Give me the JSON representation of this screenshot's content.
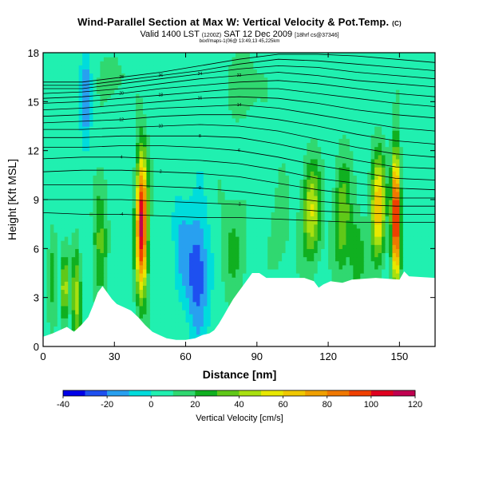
{
  "header": {
    "title": "Wind-Parallel Section at Max W: Vertical Velocity & Pot.Temp.",
    "title_unit": "(C)",
    "valid_prefix": "Valid 1400 LST",
    "valid_utc": "(1200Z)",
    "valid_date": "SAT 12 Dec 2009",
    "valid_run": "[18hrf cs@37346]",
    "meta": "boxf/maps-1(06@ 13:49,13 45,225km"
  },
  "chart_data": {
    "type": "heatmap",
    "title": "Wind-Parallel Section at Max W: Vertical Velocity & Pot.Temp.",
    "xlabel": "Distance [nm]",
    "ylabel": "Height [Kft MSL]",
    "xlim": [
      0,
      165
    ],
    "ylim": [
      0,
      18
    ],
    "xticks": [
      "0",
      "30",
      "60",
      "90",
      "120",
      "150"
    ],
    "xtick_values": [
      0,
      30,
      60,
      90,
      120,
      150
    ],
    "yticks": [
      "0",
      "3",
      "6",
      "9",
      "12",
      "15",
      "18"
    ],
    "ytick_values": [
      0,
      3,
      6,
      9,
      12,
      15,
      18
    ],
    "colorbar": {
      "title": "Vertical Velocity [cm/s]",
      "min": -40,
      "max": 120,
      "tick_labels": [
        "-40",
        "-20",
        "0",
        "20",
        "40",
        "60",
        "80",
        "100",
        "120"
      ],
      "tick_values": [
        -40,
        -20,
        0,
        20,
        40,
        60,
        80,
        100,
        120
      ],
      "bins": [
        {
          "from": -40,
          "to": -30,
          "color": "#0000e8"
        },
        {
          "from": -30,
          "to": -20,
          "color": "#1e50f0"
        },
        {
          "from": -20,
          "to": -10,
          "color": "#28a0f0"
        },
        {
          "from": -10,
          "to": 0,
          "color": "#00dcdc"
        },
        {
          "from": 0,
          "to": 10,
          "color": "#20f0b0"
        },
        {
          "from": 10,
          "to": 20,
          "color": "#30d870"
        },
        {
          "from": 20,
          "to": 30,
          "color": "#10b020"
        },
        {
          "from": 30,
          "to": 40,
          "color": "#60c818"
        },
        {
          "from": 40,
          "to": 50,
          "color": "#a8e010"
        },
        {
          "from": 50,
          "to": 60,
          "color": "#e8e800"
        },
        {
          "from": 60,
          "to": 70,
          "color": "#f0c800"
        },
        {
          "from": 70,
          "to": 80,
          "color": "#f0a000"
        },
        {
          "from": 80,
          "to": 90,
          "color": "#f07800"
        },
        {
          "from": 90,
          "to": 100,
          "color": "#f04000"
        },
        {
          "from": 100,
          "to": 110,
          "color": "#e00020"
        },
        {
          "from": 110,
          "to": 120,
          "color": "#c00050"
        }
      ]
    },
    "background_w": 5,
    "w_features": [
      {
        "x": 41.5,
        "y": 7.5,
        "rx": 2.4,
        "ry": 4.2,
        "w": 110
      },
      {
        "x": 148.5,
        "y": 8.0,
        "rx": 1.8,
        "ry": 3.8,
        "w": 110
      },
      {
        "x": 141.0,
        "y": 8.5,
        "rx": 3.0,
        "ry": 3.2,
        "w": 65
      },
      {
        "x": 113.0,
        "y": 8.2,
        "rx": 4.0,
        "ry": 3.0,
        "w": 45
      },
      {
        "x": 126.0,
        "y": 8.0,
        "rx": 3.5,
        "ry": 3.5,
        "w": 35
      },
      {
        "x": 14.0,
        "y": 3.0,
        "rx": 2.0,
        "ry": 3.0,
        "w": 40
      },
      {
        "x": 9.0,
        "y": 3.5,
        "rx": 1.2,
        "ry": 2.0,
        "w": 50
      },
      {
        "x": 24.0,
        "y": 7.0,
        "rx": 3.0,
        "ry": 4.0,
        "w": 25
      },
      {
        "x": 4.0,
        "y": 4.5,
        "rx": 2.0,
        "ry": 2.5,
        "w": 25
      },
      {
        "x": 65.0,
        "y": 4.5,
        "rx": 4.5,
        "ry": 3.5,
        "w": -35
      },
      {
        "x": 58.0,
        "y": 6.5,
        "rx": 3.5,
        "ry": 3.0,
        "w": -15
      },
      {
        "x": 18.0,
        "y": 15.0,
        "rx": 2.0,
        "ry": 3.0,
        "w": -22
      },
      {
        "x": 85.0,
        "y": 16.0,
        "rx": 6.0,
        "ry": 2.0,
        "w": 15
      },
      {
        "x": 30.0,
        "y": 16.5,
        "rx": 5.0,
        "ry": 1.5,
        "w": 12
      },
      {
        "x": 80.0,
        "y": 6.0,
        "rx": 6.0,
        "ry": 3.5,
        "w": 15
      },
      {
        "x": 100.0,
        "y": 7.0,
        "rx": 4.0,
        "ry": 3.0,
        "w": 12
      },
      {
        "x": 132.0,
        "y": 5.5,
        "rx": 3.0,
        "ry": 2.5,
        "w": 25
      }
    ],
    "terrain": [
      [
        0,
        0.6
      ],
      [
        4,
        0.8
      ],
      [
        7,
        1.0
      ],
      [
        10,
        1.2
      ],
      [
        13,
        0.9
      ],
      [
        16,
        1.3
      ],
      [
        19,
        1.8
      ],
      [
        21,
        2.5
      ],
      [
        23,
        3.3
      ],
      [
        25,
        3.7
      ],
      [
        27,
        3.3
      ],
      [
        29,
        2.9
      ],
      [
        31,
        2.6
      ],
      [
        34,
        2.4
      ],
      [
        37,
        2.2
      ],
      [
        40,
        1.8
      ],
      [
        43,
        1.3
      ],
      [
        46,
        0.9
      ],
      [
        49,
        0.7
      ],
      [
        52,
        0.5
      ],
      [
        56,
        0.4
      ],
      [
        60,
        0.4
      ],
      [
        64,
        0.5
      ],
      [
        67,
        0.7
      ],
      [
        70,
        0.8
      ],
      [
        72,
        1.0
      ],
      [
        74,
        1.4
      ],
      [
        76,
        1.9
      ],
      [
        78,
        2.4
      ],
      [
        80,
        2.9
      ],
      [
        82,
        3.3
      ],
      [
        84,
        3.7
      ],
      [
        86,
        4.1
      ],
      [
        88,
        4.5
      ],
      [
        91,
        4.5
      ],
      [
        94,
        4.2
      ],
      [
        100,
        4.2
      ],
      [
        110,
        4.2
      ],
      [
        114,
        4.0
      ],
      [
        116,
        3.6
      ],
      [
        118,
        3.8
      ],
      [
        121,
        4.0
      ],
      [
        126,
        3.9
      ],
      [
        130,
        4.1
      ],
      [
        140,
        4.2
      ],
      [
        150,
        4.1
      ],
      [
        152,
        4.6
      ],
      [
        154,
        4.3
      ],
      [
        165,
        4.2
      ]
    ],
    "isentropes": [
      {
        "label": "28",
        "y": [
          16.2,
          16.2,
          16.5,
          16.8,
          17.2,
          17.6,
          17.9,
          17.9,
          17.8,
          17.6,
          17.4
        ]
      },
      {
        "label": "26",
        "y": [
          16.0,
          16.0,
          16.3,
          16.6,
          16.9,
          17.3,
          17.6,
          17.5,
          17.3,
          17.1,
          16.9
        ]
      },
      {
        "label": "24",
        "y": [
          15.8,
          15.8,
          16.1,
          16.4,
          16.7,
          17.0,
          17.2,
          17.1,
          16.8,
          16.6,
          16.4
        ]
      },
      {
        "label": "22",
        "y": [
          15.5,
          15.6,
          15.8,
          16.1,
          16.4,
          16.6,
          16.8,
          16.6,
          16.3,
          16.1,
          15.9
        ]
      },
      {
        "label": "20",
        "y": [
          15.2,
          15.3,
          15.5,
          15.8,
          16.0,
          16.2,
          16.3,
          16.1,
          15.8,
          15.5,
          15.3
        ]
      },
      {
        "label": "18",
        "y": [
          14.9,
          15.0,
          15.2,
          15.4,
          15.6,
          15.8,
          15.8,
          15.5,
          15.2,
          14.9,
          14.7
        ]
      },
      {
        "label": "16",
        "y": [
          14.5,
          14.6,
          14.8,
          15.0,
          15.2,
          15.3,
          15.2,
          14.9,
          14.5,
          14.2,
          14.0
        ]
      },
      {
        "label": "14",
        "y": [
          14.1,
          14.2,
          14.4,
          14.6,
          14.7,
          14.8,
          14.6,
          14.2,
          13.8,
          13.4,
          13.2
        ]
      },
      {
        "label": "12",
        "y": [
          13.7,
          13.8,
          13.9,
          14.1,
          14.2,
          14.2,
          13.9,
          13.5,
          13.0,
          12.6,
          12.4
        ]
      },
      {
        "label": "10",
        "y": [
          13.3,
          13.3,
          13.4,
          13.5,
          13.6,
          13.5,
          13.2,
          12.7,
          12.2,
          11.8,
          11.6
        ]
      },
      {
        "label": "8",
        "y": [
          12.8,
          12.8,
          12.9,
          12.9,
          12.9,
          12.8,
          12.4,
          11.9,
          11.4,
          11.0,
          10.9
        ]
      },
      {
        "label": "6",
        "y": [
          12.2,
          12.2,
          12.3,
          12.3,
          12.2,
          12.0,
          11.6,
          11.1,
          10.7,
          10.3,
          10.2
        ]
      },
      {
        "label": "4",
        "y": [
          11.5,
          11.6,
          11.6,
          11.5,
          11.4,
          11.2,
          10.8,
          10.3,
          10.0,
          9.7,
          9.6
        ]
      },
      {
        "label": "2",
        "y": [
          10.7,
          10.8,
          10.8,
          10.7,
          10.6,
          10.4,
          10.0,
          9.6,
          9.3,
          9.1,
          9.1
        ]
      },
      {
        "label": "0",
        "y": [
          9.9,
          9.9,
          9.9,
          9.8,
          9.7,
          9.5,
          9.2,
          8.9,
          8.7,
          8.6,
          8.6
        ]
      },
      {
        "label": "-2",
        "y": [
          9.0,
          9.0,
          9.0,
          8.9,
          8.8,
          8.7,
          8.5,
          8.3,
          8.2,
          8.1,
          8.1
        ]
      },
      {
        "label": "-4",
        "y": [
          8.2,
          8.1,
          8.1,
          8.0,
          7.9,
          7.9,
          7.8,
          7.7,
          7.6,
          7.6,
          7.6
        ]
      }
    ],
    "isentrope_x": [
      0,
      16.5,
      33,
      49.5,
      66,
      82.5,
      99,
      115.5,
      132,
      148.5,
      165
    ]
  }
}
